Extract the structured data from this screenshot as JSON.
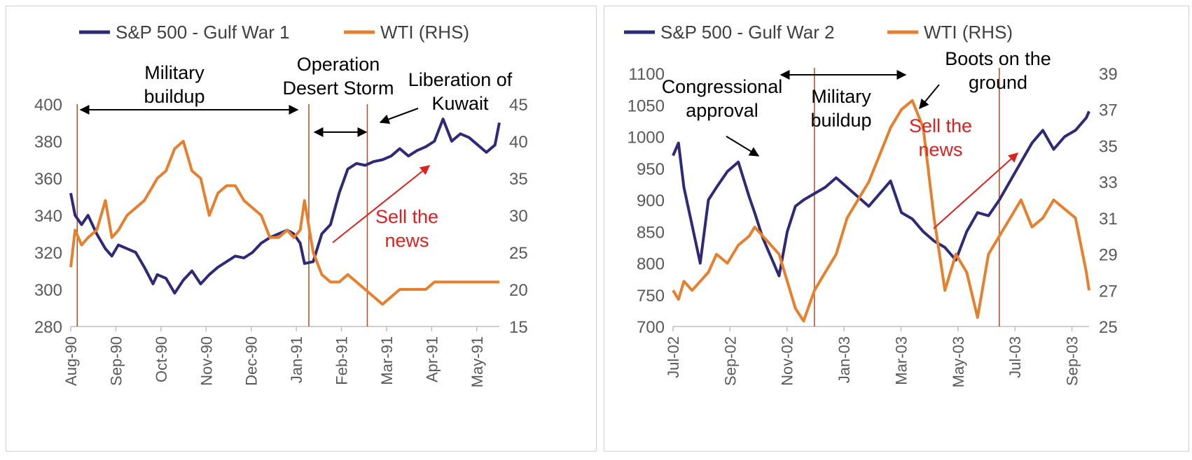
{
  "colors": {
    "sp500": "#2e2a78",
    "wti": "#e6802f",
    "event_line": "#a0522d",
    "sell_arrow": "#e02020"
  },
  "chart_data": [
    {
      "type": "line",
      "legend": [
        "S&P 500 - Gulf War 1",
        "WTI (RHS)"
      ],
      "x_ticks": [
        "Aug-90",
        "Sep-90",
        "Oct-90",
        "Nov-90",
        "Dec-90",
        "Jan-91",
        "Feb-91",
        "Mar-91",
        "Apr-91",
        "May-91"
      ],
      "y_left": {
        "ticks": [
          "280",
          "300",
          "320",
          "340",
          "360",
          "380",
          "400"
        ],
        "lim": [
          280,
          400
        ]
      },
      "y_right": {
        "ticks": [
          "15",
          "20",
          "25",
          "30",
          "35",
          "40",
          "45"
        ],
        "lim": [
          15,
          45
        ]
      },
      "x_lim": [
        0,
        9.9
      ],
      "series": [
        {
          "name": "S&P 500 - Gulf War 1",
          "axis": "left",
          "x": [
            0,
            0.1,
            0.25,
            0.4,
            0.6,
            0.8,
            0.95,
            1.1,
            1.3,
            1.5,
            1.7,
            1.9,
            2.0,
            2.2,
            2.4,
            2.6,
            2.8,
            3.0,
            3.2,
            3.4,
            3.6,
            3.8,
            4.0,
            4.2,
            4.4,
            4.6,
            4.8,
            5.0,
            5.15,
            5.3,
            5.4,
            5.6,
            5.8,
            6.0,
            6.2,
            6.4,
            6.6,
            6.8,
            7.0,
            7.2,
            7.4,
            7.6,
            7.8,
            8.0,
            8.2,
            8.4,
            8.6,
            8.8,
            9.0,
            9.2,
            9.4,
            9.6,
            9.8,
            9.9
          ],
          "values": [
            352,
            340,
            335,
            340,
            330,
            322,
            318,
            324,
            322,
            320,
            312,
            303,
            308,
            306,
            298,
            305,
            310,
            303,
            308,
            312,
            315,
            318,
            317,
            320,
            325,
            328,
            330,
            332,
            330,
            325,
            314,
            315,
            330,
            335,
            352,
            365,
            368,
            367,
            369,
            370,
            372,
            376,
            372,
            375,
            377,
            380,
            392,
            380,
            384,
            382,
            378,
            374,
            378,
            390
          ]
        },
        {
          "name": "WTI (RHS)",
          "axis": "right",
          "x": [
            0,
            0.1,
            0.25,
            0.4,
            0.6,
            0.8,
            0.95,
            1.1,
            1.3,
            1.5,
            1.7,
            1.9,
            2.0,
            2.2,
            2.4,
            2.6,
            2.8,
            3.0,
            3.2,
            3.4,
            3.6,
            3.8,
            4.0,
            4.2,
            4.4,
            4.6,
            4.8,
            5.0,
            5.15,
            5.3,
            5.4,
            5.6,
            5.8,
            6.0,
            6.2,
            6.4,
            6.6,
            6.8,
            7.0,
            7.2,
            7.4,
            7.6,
            7.8,
            8.0,
            8.2,
            8.4,
            8.6,
            8.8,
            9.0,
            9.2,
            9.4,
            9.6,
            9.8,
            9.9
          ],
          "values": [
            23,
            28,
            26,
            27,
            28,
            32,
            27,
            28,
            30,
            31,
            32,
            34,
            35,
            36,
            39,
            40,
            36,
            35,
            30,
            33,
            34,
            34,
            32,
            31,
            30,
            27,
            27,
            28,
            27,
            28,
            32,
            25,
            22,
            21,
            21,
            22,
            21,
            20,
            19,
            18,
            19,
            20,
            20,
            20,
            20,
            21,
            21,
            21,
            21,
            21,
            21,
            21,
            21,
            21
          ]
        }
      ],
      "event_lines_x": [
        0.15,
        5.5,
        6.85
      ],
      "annotations": {
        "military_buildup": [
          "Military",
          "buildup"
        ],
        "operation_desert_storm": [
          "Operation",
          "Desert Storm"
        ],
        "liberation_of_kuwait": [
          "Liberation of",
          "Kuwait"
        ],
        "sell_the_news": [
          "Sell the",
          "news"
        ]
      }
    },
    {
      "type": "line",
      "legend": [
        "S&P 500 - Gulf War 2",
        "WTI (RHS)"
      ],
      "x_ticks": [
        "Jul-02",
        "Sep-02",
        "Nov-02",
        "Jan-03",
        "Mar-03",
        "May-03",
        "Jul-03",
        "Sep-03"
      ],
      "y_left": {
        "ticks": [
          "700",
          "750",
          "800",
          "850",
          "900",
          "950",
          "1000",
          "1050",
          "1100"
        ],
        "lim": [
          700,
          1100
        ]
      },
      "y_right": {
        "ticks": [
          "25",
          "27",
          "29",
          "31",
          "33",
          "35",
          "37",
          "39"
        ],
        "lim": [
          25,
          39
        ]
      },
      "x_lim": [
        0,
        15.3
      ],
      "series": [
        {
          "name": "S&P 500 - Gulf War 2",
          "axis": "left",
          "x": [
            0,
            0.2,
            0.4,
            0.7,
            1.0,
            1.3,
            1.6,
            2.0,
            2.4,
            2.8,
            3.0,
            3.3,
            3.6,
            3.9,
            4.2,
            4.5,
            4.8,
            5.2,
            5.6,
            6.0,
            6.4,
            6.8,
            7.2,
            7.6,
            8.0,
            8.4,
            8.8,
            9.2,
            9.6,
            10.0,
            10.4,
            10.8,
            11.2,
            11.6,
            12.0,
            12.4,
            12.8,
            13.2,
            13.6,
            14.0,
            14.4,
            14.8,
            15.2,
            15.3
          ],
          "values": [
            970,
            990,
            920,
            860,
            800,
            900,
            920,
            945,
            960,
            905,
            880,
            840,
            810,
            780,
            850,
            890,
            900,
            910,
            920,
            935,
            920,
            905,
            890,
            910,
            930,
            880,
            870,
            850,
            835,
            825,
            805,
            850,
            880,
            875,
            900,
            930,
            960,
            990,
            1010,
            980,
            1000,
            1010,
            1030,
            1040
          ]
        },
        {
          "name": "WTI (RHS)",
          "axis": "right",
          "x": [
            0,
            0.2,
            0.4,
            0.7,
            1.0,
            1.3,
            1.6,
            2.0,
            2.4,
            2.8,
            3.0,
            3.3,
            3.6,
            3.9,
            4.2,
            4.5,
            4.8,
            5.2,
            5.6,
            6.0,
            6.4,
            6.8,
            7.2,
            7.6,
            8.0,
            8.4,
            8.8,
            9.2,
            9.6,
            10.0,
            10.4,
            10.8,
            11.2,
            11.6,
            12.0,
            12.4,
            12.8,
            13.2,
            13.6,
            14.0,
            14.4,
            14.8,
            15.2,
            15.3
          ],
          "values": [
            27,
            26.5,
            27.5,
            27,
            27.5,
            28,
            29,
            28.5,
            29.5,
            30,
            30.5,
            30,
            29.5,
            29,
            27.5,
            26,
            25.3,
            27,
            28,
            29,
            31,
            32,
            33,
            34.5,
            36,
            37,
            37.5,
            36,
            31,
            27,
            29,
            28,
            25.5,
            29,
            30,
            31,
            32,
            30.5,
            31,
            32,
            31.5,
            31,
            28,
            27
          ]
        }
      ],
      "event_lines_x": [
        5.2,
        12.0
      ],
      "annotations": {
        "congressional_approval": [
          "Congressional",
          "approval"
        ],
        "military_buildup": [
          "Military",
          "buildup"
        ],
        "boots_on_the_ground": [
          "Boots on the",
          "ground"
        ],
        "sell_the_news": [
          "Sell the",
          "news"
        ]
      }
    }
  ]
}
